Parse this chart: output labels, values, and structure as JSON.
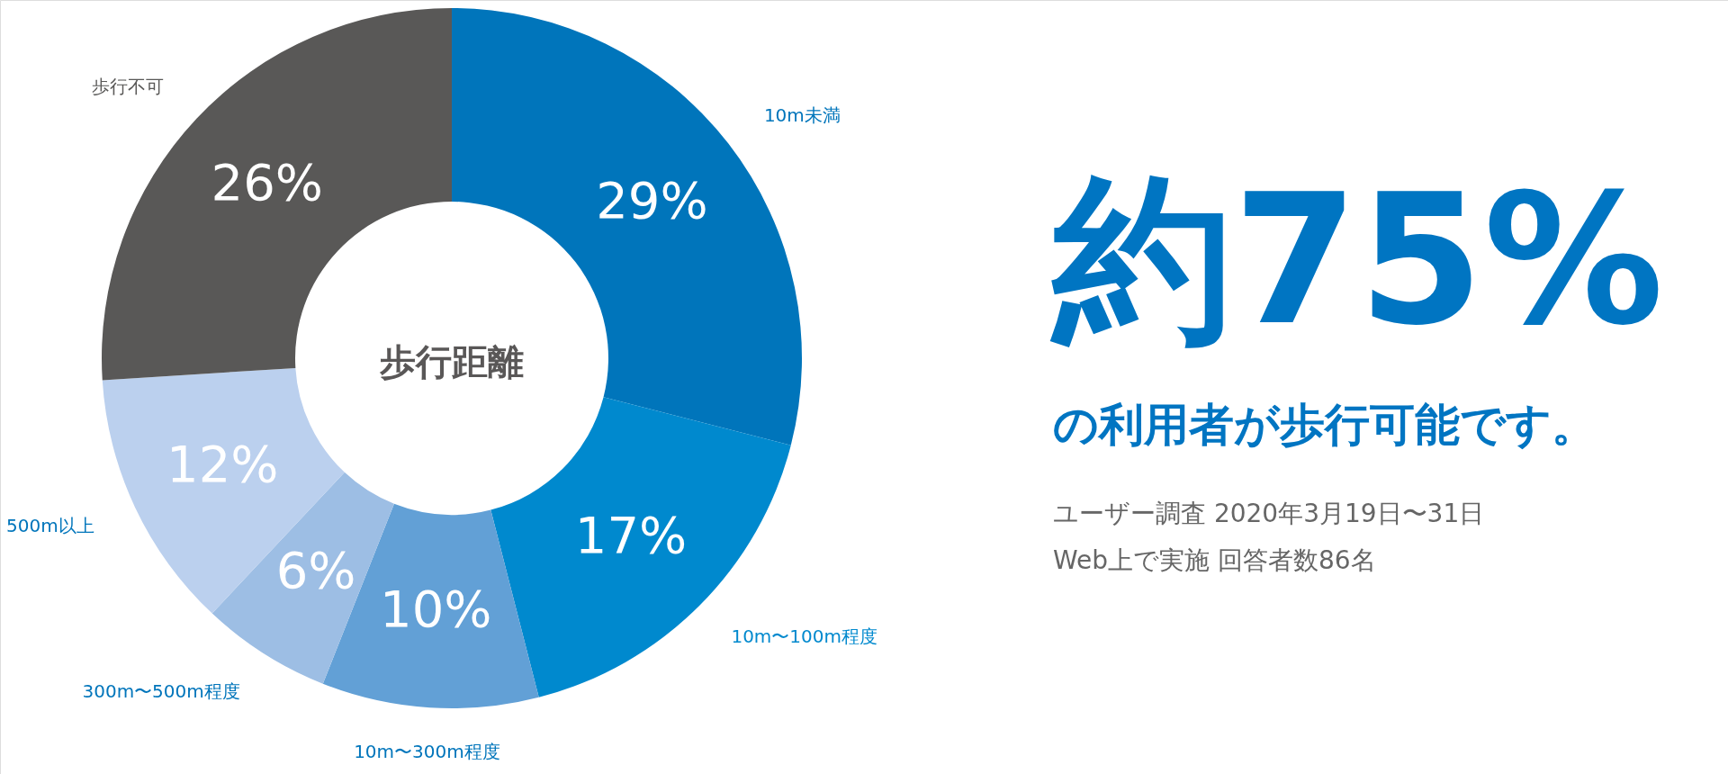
{
  "chart_data": {
    "type": "donut",
    "title": "歩行距離",
    "categories": [
      "10m未満",
      "10m〜100m程度",
      "10m〜300m程度",
      "300m〜500m程度",
      "500m以上",
      "歩行不可"
    ],
    "values": [
      29,
      17,
      10,
      6,
      12,
      26
    ],
    "colors": [
      "#0075bb",
      "#0089ce",
      "#62a0d6",
      "#9dbee4",
      "#bbd0ee",
      "#595857"
    ],
    "value_labels": [
      "29%",
      "17%",
      "10%",
      "6%",
      "12%",
      "26%"
    ],
    "annotations": [
      "約75%",
      "の利用者が歩行可能です。",
      "ユーザー調査 2020年3月19日〜31日",
      "Web上で実施 回答者数86名"
    ]
  }
}
